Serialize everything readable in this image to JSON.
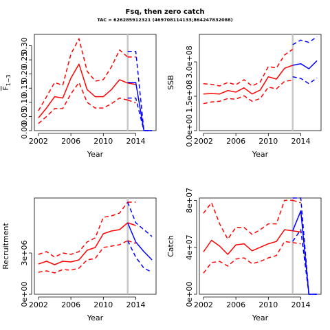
{
  "title": "Fsq, then zero catch",
  "subtitle": "TAC = 626285912321 (469708114133;864247832088)",
  "colors": {
    "history": "#ff0000",
    "projection": "#0000ff",
    "reference_line": "#c8c8c8"
  },
  "chart_data": [
    {
      "type": "line",
      "panel": "fbar",
      "ylabel_main": "F",
      "ylabel_sub": "1−3",
      "xlabel": "Year",
      "xlim": [
        2001.5,
        2016.5
      ],
      "ylim": [
        0,
        0.34
      ],
      "xticks": [
        2002,
        2006,
        2010,
        2014
      ],
      "yticks": [
        0.0,
        0.05,
        0.1,
        0.15,
        0.2,
        0.25,
        0.3
      ],
      "ytick_labels": [
        "0.00",
        "0.05",
        "0.10",
        "0.15",
        "0.20",
        "0.25",
        "0.30"
      ],
      "reference_year": 2013,
      "series": [
        {
          "role": "history",
          "style": "solid",
          "x": [
            2002,
            2003,
            2004,
            2005,
            2006,
            2007,
            2008,
            2009,
            2010,
            2011,
            2012,
            2013
          ],
          "values": [
            0.045,
            0.08,
            0.12,
            0.115,
            0.185,
            0.235,
            0.145,
            0.12,
            0.12,
            0.145,
            0.18,
            0.168
          ]
        },
        {
          "role": "history",
          "style": "dashed",
          "x": [
            2002,
            2003,
            2004,
            2005,
            2006,
            2007,
            2008,
            2009,
            2010,
            2011,
            2012,
            2013
          ],
          "values": [
            0.07,
            0.12,
            0.17,
            0.16,
            0.27,
            0.325,
            0.21,
            0.175,
            0.18,
            0.225,
            0.285,
            0.26
          ]
        },
        {
          "role": "history",
          "style": "dashed",
          "x": [
            2002,
            2003,
            2004,
            2005,
            2006,
            2007,
            2008,
            2009,
            2010,
            2011,
            2012,
            2013
          ],
          "values": [
            0.025,
            0.05,
            0.078,
            0.078,
            0.13,
            0.17,
            0.1,
            0.08,
            0.08,
            0.095,
            0.115,
            0.108
          ]
        },
        {
          "role": "history",
          "style": "solid",
          "x": [
            2013,
            2014
          ],
          "values": [
            0.168,
            0.163
          ]
        },
        {
          "role": "history",
          "style": "dashed",
          "x": [
            2013,
            2014
          ],
          "values": [
            0.26,
            0.26
          ]
        },
        {
          "role": "history",
          "style": "dashed",
          "x": [
            2013,
            2014
          ],
          "values": [
            0.108,
            0.098
          ]
        },
        {
          "role": "projection",
          "style": "solid",
          "x": [
            2013,
            2014,
            2015,
            2016
          ],
          "values": [
            0.17,
            0.17,
            0.0,
            0.0
          ]
        },
        {
          "role": "projection",
          "style": "dashed",
          "x": [
            2013,
            2014,
            2015,
            2016
          ],
          "values": [
            0.28,
            0.28,
            0.0,
            0.0
          ]
        },
        {
          "role": "projection",
          "style": "dashed",
          "x": [
            2013,
            2014,
            2015,
            2016
          ],
          "values": [
            0.115,
            0.115,
            0.0,
            0.0
          ]
        }
      ]
    },
    {
      "type": "line",
      "panel": "ssb",
      "ylabel_main": "SSB",
      "xlabel": "Year",
      "xlim": [
        2001.5,
        2016.5
      ],
      "ylim": [
        0,
        420000000
      ],
      "xticks": [
        2002,
        2006,
        2010,
        2014
      ],
      "yticks": [
        0,
        150000000,
        300000000
      ],
      "ytick_labels": [
        "0.0e+00",
        "1.5e+08",
        "3.0e+08"
      ],
      "reference_year": 2013,
      "series": [
        {
          "role": "history",
          "style": "solid",
          "x": [
            2002,
            2003,
            2004,
            2005,
            2006,
            2007,
            2008,
            2009,
            2010,
            2011,
            2012,
            2013
          ],
          "values": [
            160000000,
            162000000,
            160000000,
            175000000,
            168000000,
            187000000,
            160000000,
            177000000,
            235000000,
            225000000,
            272000000,
            285000000
          ]
        },
        {
          "role": "history",
          "style": "dashed",
          "x": [
            2002,
            2003,
            2004,
            2005,
            2006,
            2007,
            2008,
            2009,
            2010,
            2011,
            2012,
            2013
          ],
          "values": [
            205000000,
            202000000,
            195000000,
            210000000,
            200000000,
            222000000,
            195000000,
            212000000,
            280000000,
            273000000,
            330000000,
            355000000
          ]
        },
        {
          "role": "history",
          "style": "dashed",
          "x": [
            2002,
            2003,
            2004,
            2005,
            2006,
            2007,
            2008,
            2009,
            2010,
            2011,
            2012,
            2013
          ],
          "values": [
            118000000,
            125000000,
            128000000,
            140000000,
            137000000,
            152000000,
            128000000,
            140000000,
            190000000,
            182000000,
            215000000,
            220000000
          ]
        },
        {
          "role": "projection",
          "style": "solid",
          "x": [
            2013,
            2014,
            2015,
            2016
          ],
          "values": [
            285000000,
            292000000,
            270000000,
            305000000
          ]
        },
        {
          "role": "projection",
          "style": "dashed",
          "x": [
            2013,
            2014,
            2015,
            2016
          ],
          "values": [
            375000000,
            395000000,
            385000000,
            410000000
          ]
        },
        {
          "role": "projection",
          "style": "dashed",
          "x": [
            2013,
            2014,
            2015,
            2016
          ],
          "values": [
            235000000,
            228000000,
            205000000,
            230000000
          ]
        }
      ]
    },
    {
      "type": "line",
      "panel": "recruitment",
      "ylabel_main": "Recruitment",
      "xlabel": "Year",
      "xlim": [
        2001.5,
        2016.5
      ],
      "ylim": [
        0,
        7000000
      ],
      "xticks": [
        2002,
        2006,
        2010,
        2014
      ],
      "yticks": [
        0,
        3000000
      ],
      "ytick_labels": [
        "0e+00",
        "3e+06"
      ],
      "reference_year": 2013,
      "series": [
        {
          "role": "history",
          "style": "solid",
          "x": [
            2002,
            2003,
            2004,
            2005,
            2006,
            2007,
            2008,
            2009,
            2010,
            2011,
            2012,
            2013
          ],
          "values": [
            2200000,
            2400000,
            2150000,
            2400000,
            2350000,
            2500000,
            3200000,
            3400000,
            4400000,
            4600000,
            4700000,
            5200000
          ]
        },
        {
          "role": "history",
          "style": "dashed",
          "x": [
            2002,
            2003,
            2004,
            2005,
            2006,
            2007,
            2008,
            2009,
            2010,
            2011,
            2012,
            2013
          ],
          "values": [
            2900000,
            3100000,
            2700000,
            3000000,
            2900000,
            3100000,
            3800000,
            4100000,
            5600000,
            5700000,
            5900000,
            6700000
          ]
        },
        {
          "role": "history",
          "style": "dashed",
          "x": [
            2002,
            2003,
            2004,
            2005,
            2006,
            2007,
            2008,
            2009,
            2010,
            2011,
            2012,
            2013
          ],
          "values": [
            1600000,
            1700000,
            1550000,
            1800000,
            1750000,
            1900000,
            2500000,
            2600000,
            3400000,
            3500000,
            3600000,
            3900000
          ]
        },
        {
          "role": "history",
          "style": "solid",
          "x": [
            2013,
            2014
          ],
          "values": [
            5200000,
            5000000
          ]
        },
        {
          "role": "history",
          "style": "dashed",
          "x": [
            2013,
            2014
          ],
          "values": [
            6700000,
            6700000
          ]
        },
        {
          "role": "history",
          "style": "dashed",
          "x": [
            2013,
            2014
          ],
          "values": [
            3900000,
            3700000
          ]
        },
        {
          "role": "projection",
          "style": "solid",
          "x": [
            2013,
            2014,
            2015,
            2016
          ],
          "values": [
            5200000,
            3800000,
            3100000,
            2500000
          ]
        },
        {
          "role": "projection",
          "style": "dashed",
          "x": [
            2013,
            2014,
            2015,
            2016
          ],
          "values": [
            6700000,
            5200000,
            4700000,
            4200000
          ]
        },
        {
          "role": "projection",
          "style": "dashed",
          "x": [
            2013,
            2014,
            2015,
            2016
          ],
          "values": [
            3900000,
            2700000,
            1900000,
            1600000
          ]
        }
      ]
    },
    {
      "type": "line",
      "panel": "catch",
      "ylabel_main": "Catch",
      "xlabel": "Year",
      "xlim": [
        2001.5,
        2016.5
      ],
      "ylim": [
        0,
        82000000
      ],
      "xticks": [
        2002,
        2006,
        2010,
        2014
      ],
      "yticks": [
        0,
        40000000,
        80000000
      ],
      "ytick_labels": [
        "0e+00",
        "4e+07",
        "8e+07"
      ],
      "reference_year": 2013,
      "series": [
        {
          "role": "history",
          "style": "solid",
          "x": [
            2002,
            2003,
            2004,
            2005,
            2006,
            2007,
            2008,
            2009,
            2010,
            2011,
            2012,
            2013
          ],
          "values": [
            36000000,
            46000000,
            41000000,
            34000000,
            42000000,
            43000000,
            37000000,
            40000000,
            43000000,
            45000000,
            55000000,
            54000000
          ]
        },
        {
          "role": "history",
          "style": "dashed",
          "x": [
            2002,
            2003,
            2004,
            2005,
            2006,
            2007,
            2008,
            2009,
            2010,
            2011,
            2012,
            2013
          ],
          "values": [
            69000000,
            78000000,
            60000000,
            47000000,
            57000000,
            57000000,
            51000000,
            55000000,
            60000000,
            60000000,
            80000000,
            80000000
          ]
        },
        {
          "role": "history",
          "style": "dashed",
          "x": [
            2002,
            2003,
            2004,
            2005,
            2006,
            2007,
            2008,
            2009,
            2010,
            2011,
            2012,
            2013
          ],
          "values": [
            18000000,
            27000000,
            28000000,
            24000000,
            30000000,
            31000000,
            26000000,
            28000000,
            31000000,
            33000000,
            45000000,
            44000000
          ]
        },
        {
          "role": "history",
          "style": "solid",
          "x": [
            2013,
            2014
          ],
          "values": [
            54000000,
            53000000
          ]
        },
        {
          "role": "history",
          "style": "dashed",
          "x": [
            2013,
            2014
          ],
          "values": [
            80000000,
            78000000
          ]
        },
        {
          "role": "history",
          "style": "dashed",
          "x": [
            2013,
            2014
          ],
          "values": [
            44000000,
            43000000
          ]
        },
        {
          "role": "projection",
          "style": "solid",
          "x": [
            2013,
            2014,
            2015,
            2016
          ],
          "values": [
            54000000,
            71000000,
            0,
            0
          ]
        },
        {
          "role": "projection",
          "style": "dashed",
          "x": [
            2013,
            2014,
            2015,
            2016
          ],
          "values": [
            82000000,
            82000000,
            0,
            0
          ]
        },
        {
          "role": "projection",
          "style": "dashed",
          "x": [
            2013,
            2014,
            2015,
            2016
          ],
          "values": [
            45000000,
            55000000,
            0,
            0
          ]
        }
      ]
    }
  ]
}
